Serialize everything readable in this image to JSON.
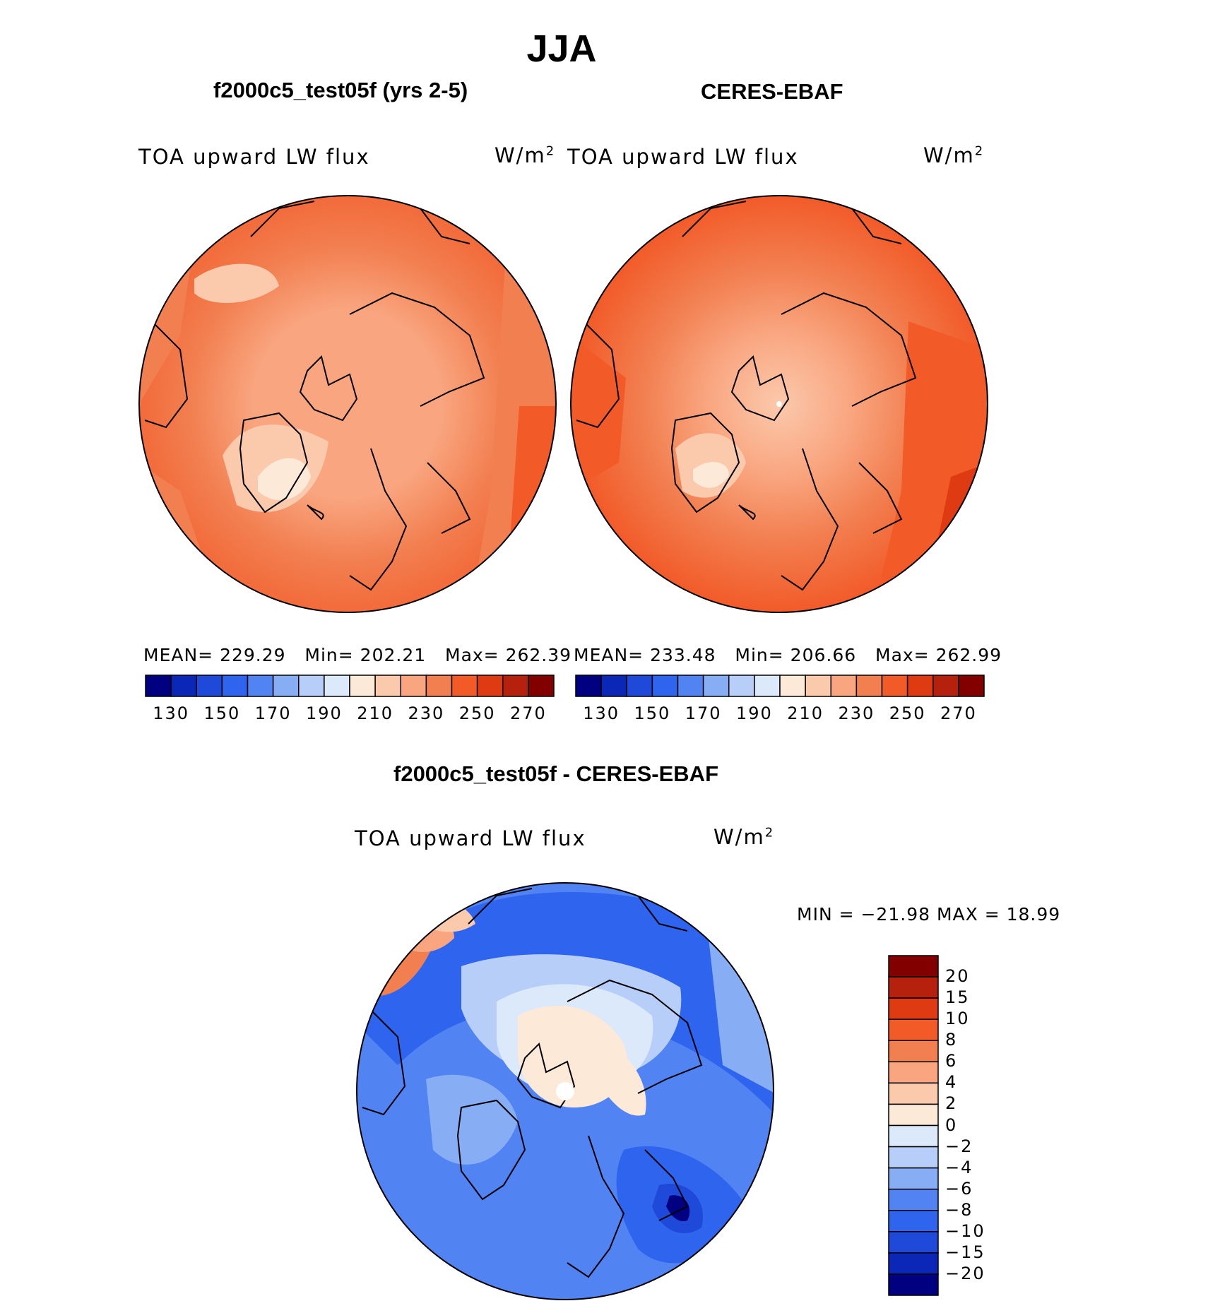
{
  "main_title": "JJA",
  "panels": [
    {
      "title": "f2000c5_test05f (yrs 2-5)",
      "variable": "TOA upward LW flux",
      "units_base": "W/m",
      "units_exp": "2",
      "stats": {
        "mean_label": "MEAN=",
        "mean": "229.29",
        "min_label": "Min=",
        "min": "202.21",
        "max_label": "Max=",
        "max": "262.39"
      }
    },
    {
      "title": "CERES-EBAF",
      "variable": "TOA upward LW flux",
      "units_base": "W/m",
      "units_exp": "2",
      "stats": {
        "mean_label": "MEAN=",
        "mean": "233.48",
        "min_label": "Min=",
        "min": "206.66",
        "max_label": "Max=",
        "max": "262.99"
      }
    }
  ],
  "diff_panel": {
    "title": "f2000c5_test05f - CERES-EBAF",
    "variable": "TOA upward LW flux",
    "units_base": "W/m",
    "units_exp": "2",
    "minmax_text": "MIN = −21.98 MAX =   18.99"
  },
  "abs_colorbar": {
    "colors": [
      "#000080",
      "#0b27b8",
      "#1f49d8",
      "#2e64ee",
      "#5184f2",
      "#87aef5",
      "#b7cff8",
      "#dbe9fb",
      "#fde9d8",
      "#fbc9ac",
      "#f9a57f",
      "#f27f50",
      "#f25a28",
      "#de3b12",
      "#b5210c",
      "#830000"
    ],
    "tick_labels": [
      "130",
      "150",
      "170",
      "190",
      "210",
      "230",
      "250",
      "270"
    ]
  },
  "diff_colorbar": {
    "colors": [
      "#000080",
      "#0b27b8",
      "#1f49d8",
      "#2e64ee",
      "#5184f2",
      "#87aef5",
      "#b7cff8",
      "#dbe9fb",
      "#fde9d8",
      "#fbc9ac",
      "#f9a57f",
      "#f27f50",
      "#f25a28",
      "#de3b12",
      "#b5210c",
      "#830000"
    ],
    "tick_labels": [
      "20",
      "15",
      "10",
      "8",
      "6",
      "4",
      "2",
      "0",
      "−2",
      "−4",
      "−6",
      "−8",
      "−10",
      "−15",
      "−20"
    ]
  }
}
